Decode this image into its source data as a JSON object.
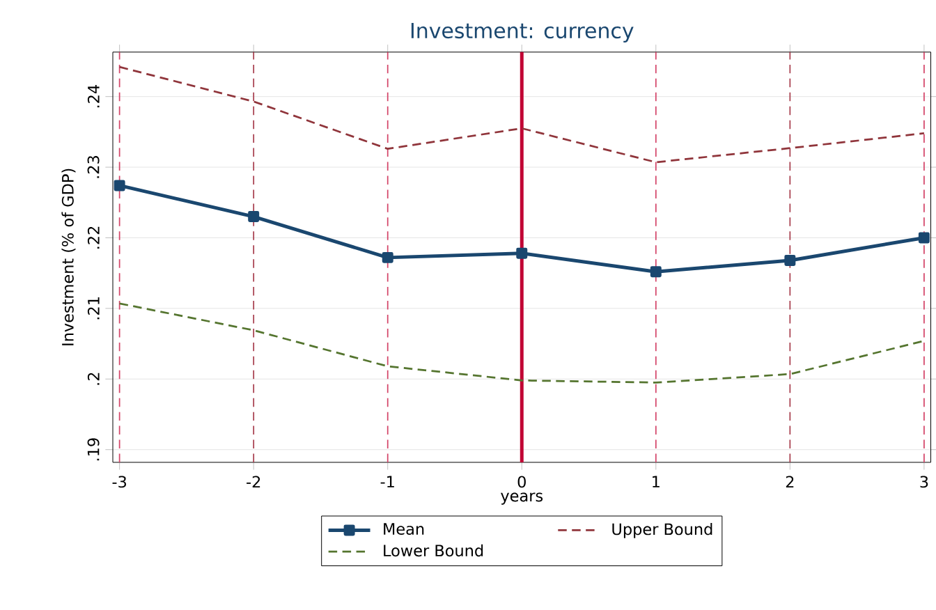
{
  "chart_data": {
    "type": "line",
    "title": "Investment: currency",
    "xlabel": "years",
    "ylabel": "Investment (% of GDP)",
    "x": [
      -3,
      -2,
      -1,
      0,
      1,
      2,
      3
    ],
    "series": [
      {
        "name": "Mean",
        "color": "#1a476f",
        "marker": "square",
        "line_style": "solid",
        "values": [
          0.2274,
          0.223,
          0.2172,
          0.2178,
          0.2152,
          0.2168,
          0.22
        ]
      },
      {
        "name": "Upper Bound",
        "color": "#90353b",
        "marker": "none",
        "line_style": "dashed",
        "values": [
          0.2442,
          0.2393,
          0.2326,
          0.2355,
          0.2307,
          0.2327,
          0.2348
        ]
      },
      {
        "name": "Lower Bound",
        "color": "#55752f",
        "marker": "none",
        "line_style": "dashed",
        "values": [
          0.2107,
          0.2069,
          0.2018,
          0.1998,
          0.1995,
          0.2007,
          0.2054
        ]
      }
    ],
    "xlim": [
      -3.05,
      3.05
    ],
    "ylim": [
      0.1882,
      0.2463
    ],
    "xticks": [
      -3,
      -2,
      -1,
      0,
      1,
      2,
      3
    ],
    "yticks": [
      {
        "value": 0.19,
        "label": ".19"
      },
      {
        "value": 0.2,
        "label": ".2"
      },
      {
        "value": 0.21,
        "label": ".21"
      },
      {
        "value": 0.22,
        "label": ".22"
      },
      {
        "value": 0.23,
        "label": ".23"
      },
      {
        "value": 0.24,
        "label": ".24"
      }
    ],
    "grid": "y",
    "legend": "bottom",
    "ref_lines": [
      {
        "axis": "x",
        "value": -3,
        "color": "#d4466a",
        "line_style": "dashed"
      },
      {
        "axis": "x",
        "value": -2,
        "color": "#a8404f",
        "line_style": "dashed"
      },
      {
        "axis": "x",
        "value": -1,
        "color": "#d4466a",
        "line_style": "dashed"
      },
      {
        "axis": "x",
        "value": 0,
        "color": "#c10534",
        "line_style": "solid"
      },
      {
        "axis": "x",
        "value": 1,
        "color": "#d4466a",
        "line_style": "dashed"
      },
      {
        "axis": "x",
        "value": 2,
        "color": "#a8404f",
        "line_style": "dashed"
      },
      {
        "axis": "x",
        "value": 3,
        "color": "#d4466a",
        "line_style": "dashed"
      }
    ]
  }
}
